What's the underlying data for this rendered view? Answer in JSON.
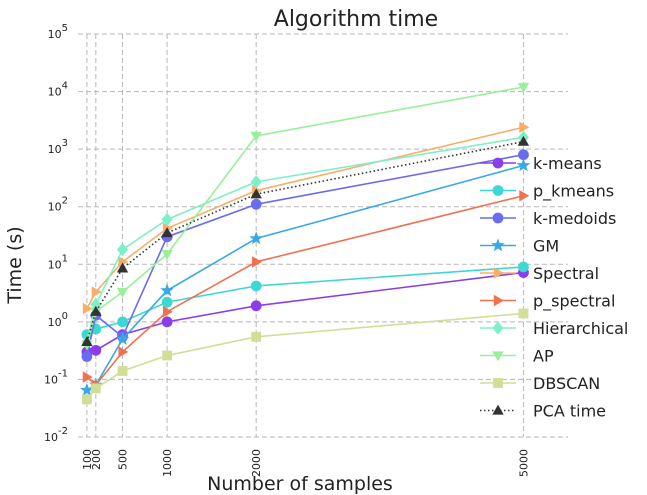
{
  "chart_data": {
    "type": "line",
    "title": "Algorithm time",
    "xlabel": "Number of samples",
    "ylabel": "Time (s)",
    "x": [
      100,
      200,
      500,
      1000,
      2000,
      5000
    ],
    "x_tick_labels": [
      "100",
      "200",
      "500",
      "1000",
      "2000",
      "5000"
    ],
    "xlim": [
      0,
      5500
    ],
    "yscale": "log",
    "ylim": [
      0.01,
      100000
    ],
    "y_ticks": [
      {
        "value": 0.01,
        "base": "10",
        "exp": "-2"
      },
      {
        "value": 0.1,
        "base": "10",
        "exp": "-1"
      },
      {
        "value": 1,
        "base": "10",
        "exp": "0"
      },
      {
        "value": 10,
        "base": "10",
        "exp": "1"
      },
      {
        "value": 100,
        "base": "10",
        "exp": "2"
      },
      {
        "value": 1000,
        "base": "10",
        "exp": "3"
      },
      {
        "value": 10000,
        "base": "10",
        "exp": "4"
      },
      {
        "value": 100000,
        "base": "10",
        "exp": "5"
      }
    ],
    "grid": true,
    "legend_position": "right",
    "series": [
      {
        "name": "k-means",
        "color": "#8a3de8",
        "marker": "circle",
        "style": "solid",
        "values": [
          0.3,
          0.32,
          0.6,
          1.0,
          1.9,
          7.2
        ]
      },
      {
        "name": "p_kmeans",
        "color": "#3ed8d4",
        "marker": "circle",
        "style": "solid",
        "values": [
          0.6,
          0.75,
          1.0,
          2.2,
          4.2,
          9.0
        ]
      },
      {
        "name": "k-medoids",
        "color": "#6a6cf0",
        "marker": "circle",
        "style": "solid",
        "values": [
          0.25,
          1.3,
          0.55,
          30,
          110,
          800
        ]
      },
      {
        "name": "GM",
        "color": "#3aa8e6",
        "marker": "star",
        "style": "solid",
        "values": [
          0.065,
          0.08,
          0.5,
          3.5,
          28,
          520
        ]
      },
      {
        "name": "Spectral",
        "color": "#f8ae68",
        "marker": "tri-right",
        "style": "solid",
        "values": [
          1.7,
          3.3,
          11,
          42,
          190,
          2400
        ]
      },
      {
        "name": "p_spectral",
        "color": "#f07050",
        "marker": "tri-right",
        "style": "solid",
        "values": [
          0.11,
          0.08,
          0.3,
          1.5,
          11,
          155
        ]
      },
      {
        "name": "Hierarchical",
        "color": "#7ef0c8",
        "marker": "diamond",
        "style": "solid",
        "values": [
          0.45,
          2.0,
          18,
          60,
          270,
          1600
        ]
      },
      {
        "name": "AP",
        "color": "#98f098",
        "marker": "tri-down",
        "style": "solid",
        "values": [
          0.4,
          1.5,
          3.3,
          15,
          1700,
          12000
        ]
      },
      {
        "name": "DBSCAN",
        "color": "#d2de96",
        "marker": "square",
        "style": "solid",
        "values": [
          0.045,
          0.07,
          0.14,
          0.26,
          0.55,
          1.4
        ]
      },
      {
        "name": "PCA time",
        "color": "#333333",
        "marker": "tri-up",
        "style": "dotted",
        "values": [
          0.45,
          1.5,
          8.5,
          35,
          165,
          1350
        ]
      }
    ]
  }
}
